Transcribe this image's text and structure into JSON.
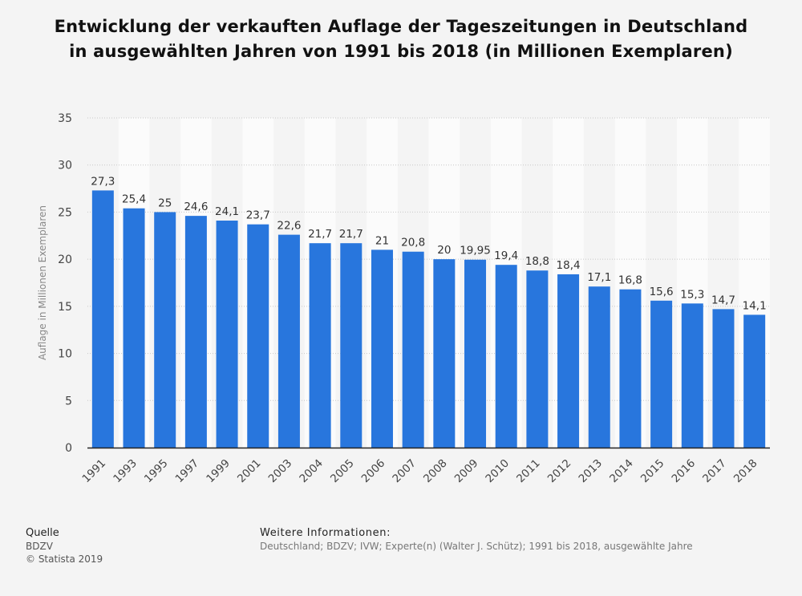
{
  "chart_data": {
    "type": "bar",
    "title": "Entwicklung der verkauften Auflage der Tageszeitungen in Deutschland in ausgewählten Jahren von 1991 bis 2018 (in Millionen Exemplaren)",
    "ylabel": "Auflage in Millionen Exemplaren",
    "xlabel": "",
    "ylim": [
      0,
      35
    ],
    "yticks": [
      0,
      5,
      10,
      15,
      20,
      25,
      30,
      35
    ],
    "categories": [
      "1991",
      "1993",
      "1995",
      "1997",
      "1999",
      "2001",
      "2003",
      "2004",
      "2005",
      "2006",
      "2007",
      "2008",
      "2009",
      "2010",
      "2011",
      "2012",
      "2013",
      "2014",
      "2015",
      "2016",
      "2017",
      "2018"
    ],
    "values": [
      27.3,
      25.4,
      25,
      24.6,
      24.1,
      23.7,
      22.6,
      21.7,
      21.7,
      21,
      20.8,
      20,
      19.95,
      19.4,
      18.8,
      18.4,
      17.1,
      16.8,
      15.6,
      15.3,
      14.7,
      14.1
    ],
    "value_labels": [
      "27,3",
      "25,4",
      "25",
      "24,6",
      "24,1",
      "23,7",
      "22,6",
      "21,7",
      "21,7",
      "21",
      "20,8",
      "20",
      "19,95",
      "19,4",
      "18,8",
      "18,4",
      "17,1",
      "16,8",
      "15,6",
      "15,3",
      "14,7",
      "14,1"
    ],
    "bar_color": "#2876dd",
    "grid": true,
    "legend": "none"
  },
  "footer": {
    "source_heading": "Quelle",
    "source": "BDZV",
    "copyright": "© Statista 2019",
    "info_heading": "Weitere Informationen:",
    "info": "Deutschland; BDZV; IVW; Experte(n) (Walter J. Schütz); 1991 bis 2018, ausgewählte Jahre"
  }
}
